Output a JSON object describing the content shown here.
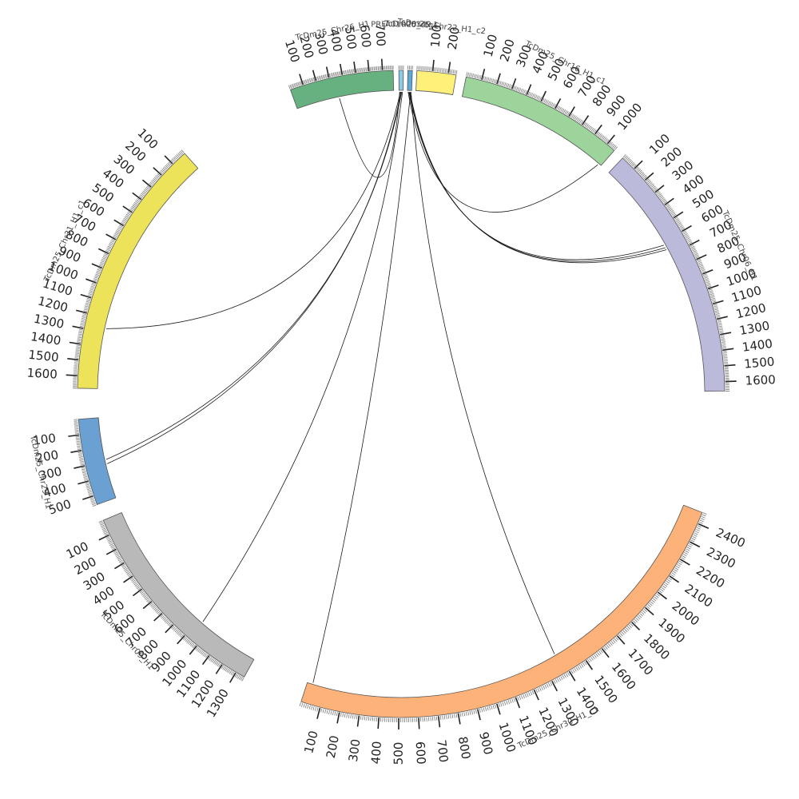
{
  "chart_data": {
    "type": "circos",
    "tick_step": 100,
    "chromosomes": [
      {
        "id": "prfa",
        "name": "PRFA01000349",
        "color": "#8ecae6",
        "length": 30,
        "start_deg": 359.6,
        "end_deg": 0.4,
        "max_label": 0
      },
      {
        "id": "ctg",
        "name": "TcDm25_ctg1",
        "color": "#5aa9d6",
        "length": 30,
        "start_deg": 1.2,
        "end_deg": 2.0,
        "max_label": 0
      },
      {
        "id": "chr22",
        "name": "TcDm25_Chr22_H1_c2",
        "color": "#fff07a",
        "length": 250,
        "start_deg": 2.8,
        "end_deg": 9.8,
        "max_label": 200
      },
      {
        "id": "chr16",
        "name": "TcDm25_Chr16_H1_c1",
        "color": "#9dd49b",
        "length": 1060,
        "start_deg": 11.6,
        "end_deg": 41.2,
        "max_label": 1000
      },
      {
        "id": "chr06",
        "name": "TcDm25_Chr06_H1",
        "color": "#bcbadb",
        "length": 1660,
        "start_deg": 43.2,
        "end_deg": 89.5,
        "max_label": 1600
      },
      {
        "id": "chr30",
        "name": "TcDm25_Chr30_H1_c1",
        "color": "#fdb27a",
        "length": 2460,
        "start_deg": 198.0,
        "end_deg": 111.5,
        "max_label": 2400
      },
      {
        "id": "chr09",
        "name": "TcDm25_Chr09_H1",
        "color": "#b9b9b9",
        "length": 1360,
        "start_deg": 247.0,
        "end_deg": 209.0,
        "max_label": 1300
      },
      {
        "id": "chr29",
        "name": "TcDm25_Chr29_H1",
        "color": "#6aa0d2",
        "length": 560,
        "start_deg": 265.5,
        "end_deg": 250.0,
        "max_label": 500
      },
      {
        "id": "chr31",
        "name": "TcDm25_Chr31_H1_c1",
        "color": "#ede35a",
        "length": 1680,
        "start_deg": 318.0,
        "end_deg": 271.0,
        "max_label": 1600
      },
      {
        "id": "chr26",
        "name": "TcDm25_Chr26_H1",
        "color": "#67b07f",
        "length": 780,
        "start_deg": 340.0,
        "end_deg": 358.6,
        "max_label": 700
      }
    ],
    "links": [
      {
        "from": "prfa",
        "from_pos": 5,
        "to": "chr26",
        "to_pos": 345
      },
      {
        "from": "prfa",
        "from_pos": 10,
        "to": "chr31",
        "to_pos": 1270
      },
      {
        "from": "ctg",
        "from_pos": 5,
        "to": "chr16",
        "to_pos": 1040
      },
      {
        "from": "ctg",
        "from_pos": 10,
        "to": "chr06",
        "to_pos": 620
      },
      {
        "from": "ctg",
        "from_pos": 14,
        "to": "chr06",
        "to_pos": 640
      },
      {
        "from": "ctg",
        "from_pos": 18,
        "to": "chr06",
        "to_pos": 655
      },
      {
        "from": "prfa",
        "from_pos": 15,
        "to": "chr29",
        "to_pos": 320
      },
      {
        "from": "prfa",
        "from_pos": 20,
        "to": "chr29",
        "to_pos": 290
      },
      {
        "from": "prfa",
        "from_pos": 25,
        "to": "chr09",
        "to_pos": 930
      },
      {
        "from": "ctg",
        "from_pos": 22,
        "to": "chr30",
        "to_pos": 30
      },
      {
        "from": "ctg",
        "from_pos": 26,
        "to": "chr30",
        "to_pos": 1380
      }
    ]
  }
}
